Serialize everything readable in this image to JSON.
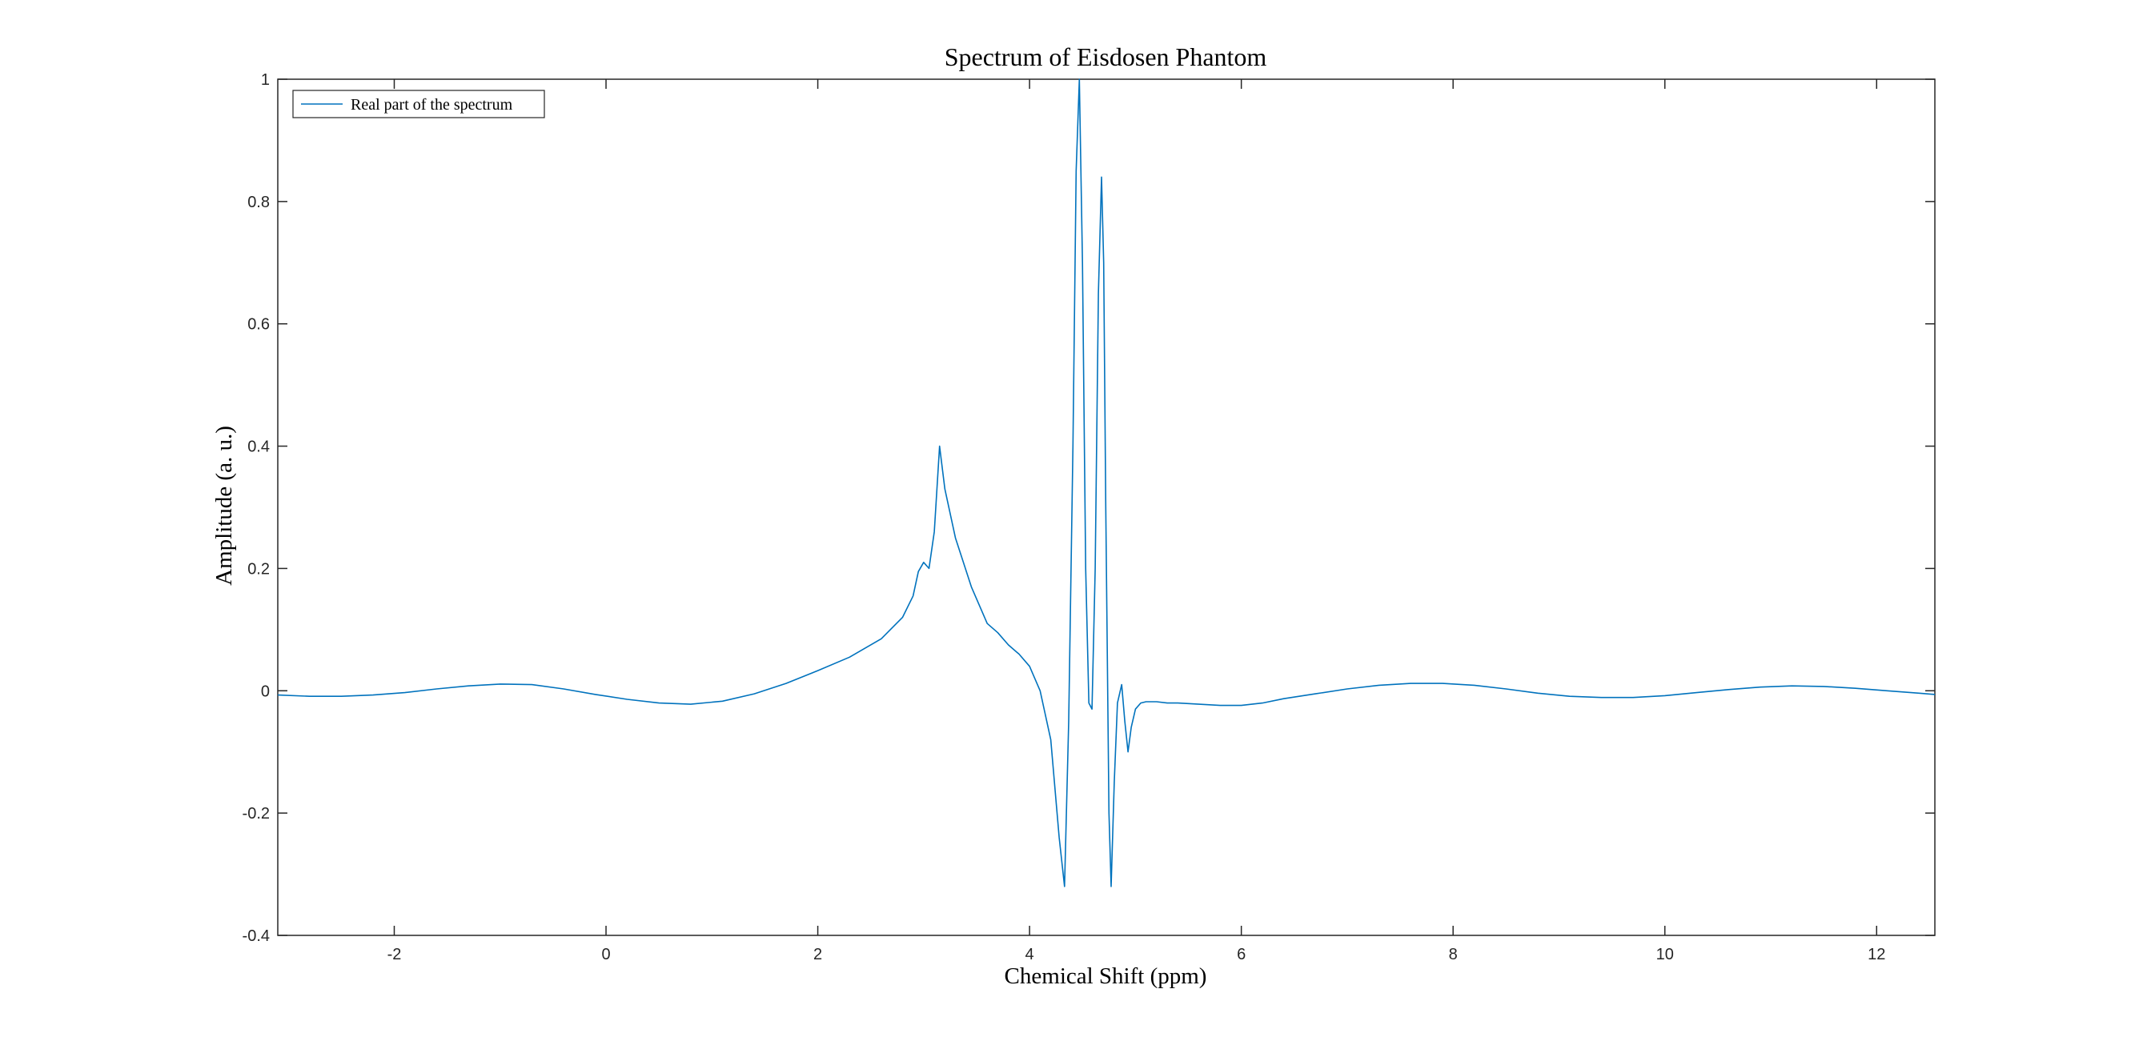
{
  "chart_data": {
    "type": "line",
    "title": "Spectrum of Eisdosen Phantom",
    "xlabel": "Chemical Shift (ppm)",
    "ylabel": "Amplitude (a. u.)",
    "xlim": [
      -3.1,
      12.55
    ],
    "ylim": [
      -0.4,
      1
    ],
    "x_ticks": [
      -2,
      0,
      2,
      4,
      6,
      8,
      10,
      12
    ],
    "x_tick_labels": [
      "-2",
      "0",
      "2",
      "4",
      "6",
      "8",
      "10",
      "12"
    ],
    "y_ticks": [
      -0.4,
      -0.2,
      0,
      0.2,
      0.4,
      0.6,
      0.8,
      1
    ],
    "y_tick_labels": [
      "-0.4",
      "-0.2",
      "0",
      "0.2",
      "0.4",
      "0.6",
      "0.8",
      "1"
    ],
    "grid": false,
    "legend_position": "top-left",
    "series": [
      {
        "name": "Real part of the spectrum",
        "color": "#0072BD",
        "x": [
          -3.1,
          -2.8,
          -2.5,
          -2.2,
          -1.9,
          -1.6,
          -1.3,
          -1.0,
          -0.7,
          -0.4,
          -0.1,
          0.2,
          0.5,
          0.8,
          1.1,
          1.4,
          1.7,
          2.0,
          2.3,
          2.6,
          2.8,
          2.9,
          2.95,
          3.0,
          3.05,
          3.1,
          3.15,
          3.2,
          3.3,
          3.45,
          3.6,
          3.7,
          3.8,
          3.9,
          4.0,
          4.1,
          4.2,
          4.28,
          4.33,
          4.37,
          4.41,
          4.44,
          4.47,
          4.5,
          4.53,
          4.56,
          4.59,
          4.62,
          4.65,
          4.68,
          4.7,
          4.72,
          4.75,
          4.77,
          4.8,
          4.83,
          4.87,
          4.9,
          4.93,
          4.96,
          5.0,
          5.05,
          5.1,
          5.2,
          5.3,
          5.4,
          5.5,
          5.6,
          5.8,
          6.0,
          6.2,
          6.4,
          6.7,
          7.0,
          7.3,
          7.6,
          7.9,
          8.2,
          8.5,
          8.8,
          9.1,
          9.4,
          9.7,
          10.0,
          10.3,
          10.6,
          10.9,
          11.2,
          11.5,
          11.8,
          12.1,
          12.4,
          12.55
        ],
        "y": [
          -0.007,
          -0.009,
          -0.009,
          -0.007,
          -0.003,
          0.003,
          0.008,
          0.011,
          0.01,
          0.003,
          -0.006,
          -0.014,
          -0.02,
          -0.022,
          -0.017,
          -0.005,
          0.012,
          0.033,
          0.055,
          0.085,
          0.12,
          0.155,
          0.195,
          0.21,
          0.2,
          0.26,
          0.4,
          0.33,
          0.25,
          0.17,
          0.11,
          0.095,
          0.075,
          0.06,
          0.04,
          0.0,
          -0.08,
          -0.24,
          -0.32,
          -0.05,
          0.4,
          0.85,
          1.0,
          0.7,
          0.2,
          -0.02,
          -0.03,
          0.2,
          0.65,
          0.84,
          0.7,
          0.3,
          -0.2,
          -0.32,
          -0.15,
          -0.02,
          0.01,
          -0.05,
          -0.1,
          -0.06,
          -0.03,
          -0.02,
          -0.018,
          -0.018,
          -0.02,
          -0.02,
          -0.021,
          -0.022,
          -0.024,
          -0.024,
          -0.02,
          -0.013,
          -0.005,
          0.003,
          0.009,
          0.012,
          0.012,
          0.009,
          0.003,
          -0.004,
          -0.009,
          -0.011,
          -0.011,
          -0.008,
          -0.003,
          0.002,
          0.006,
          0.008,
          0.007,
          0.004,
          0.0,
          -0.004,
          -0.006
        ]
      }
    ]
  }
}
